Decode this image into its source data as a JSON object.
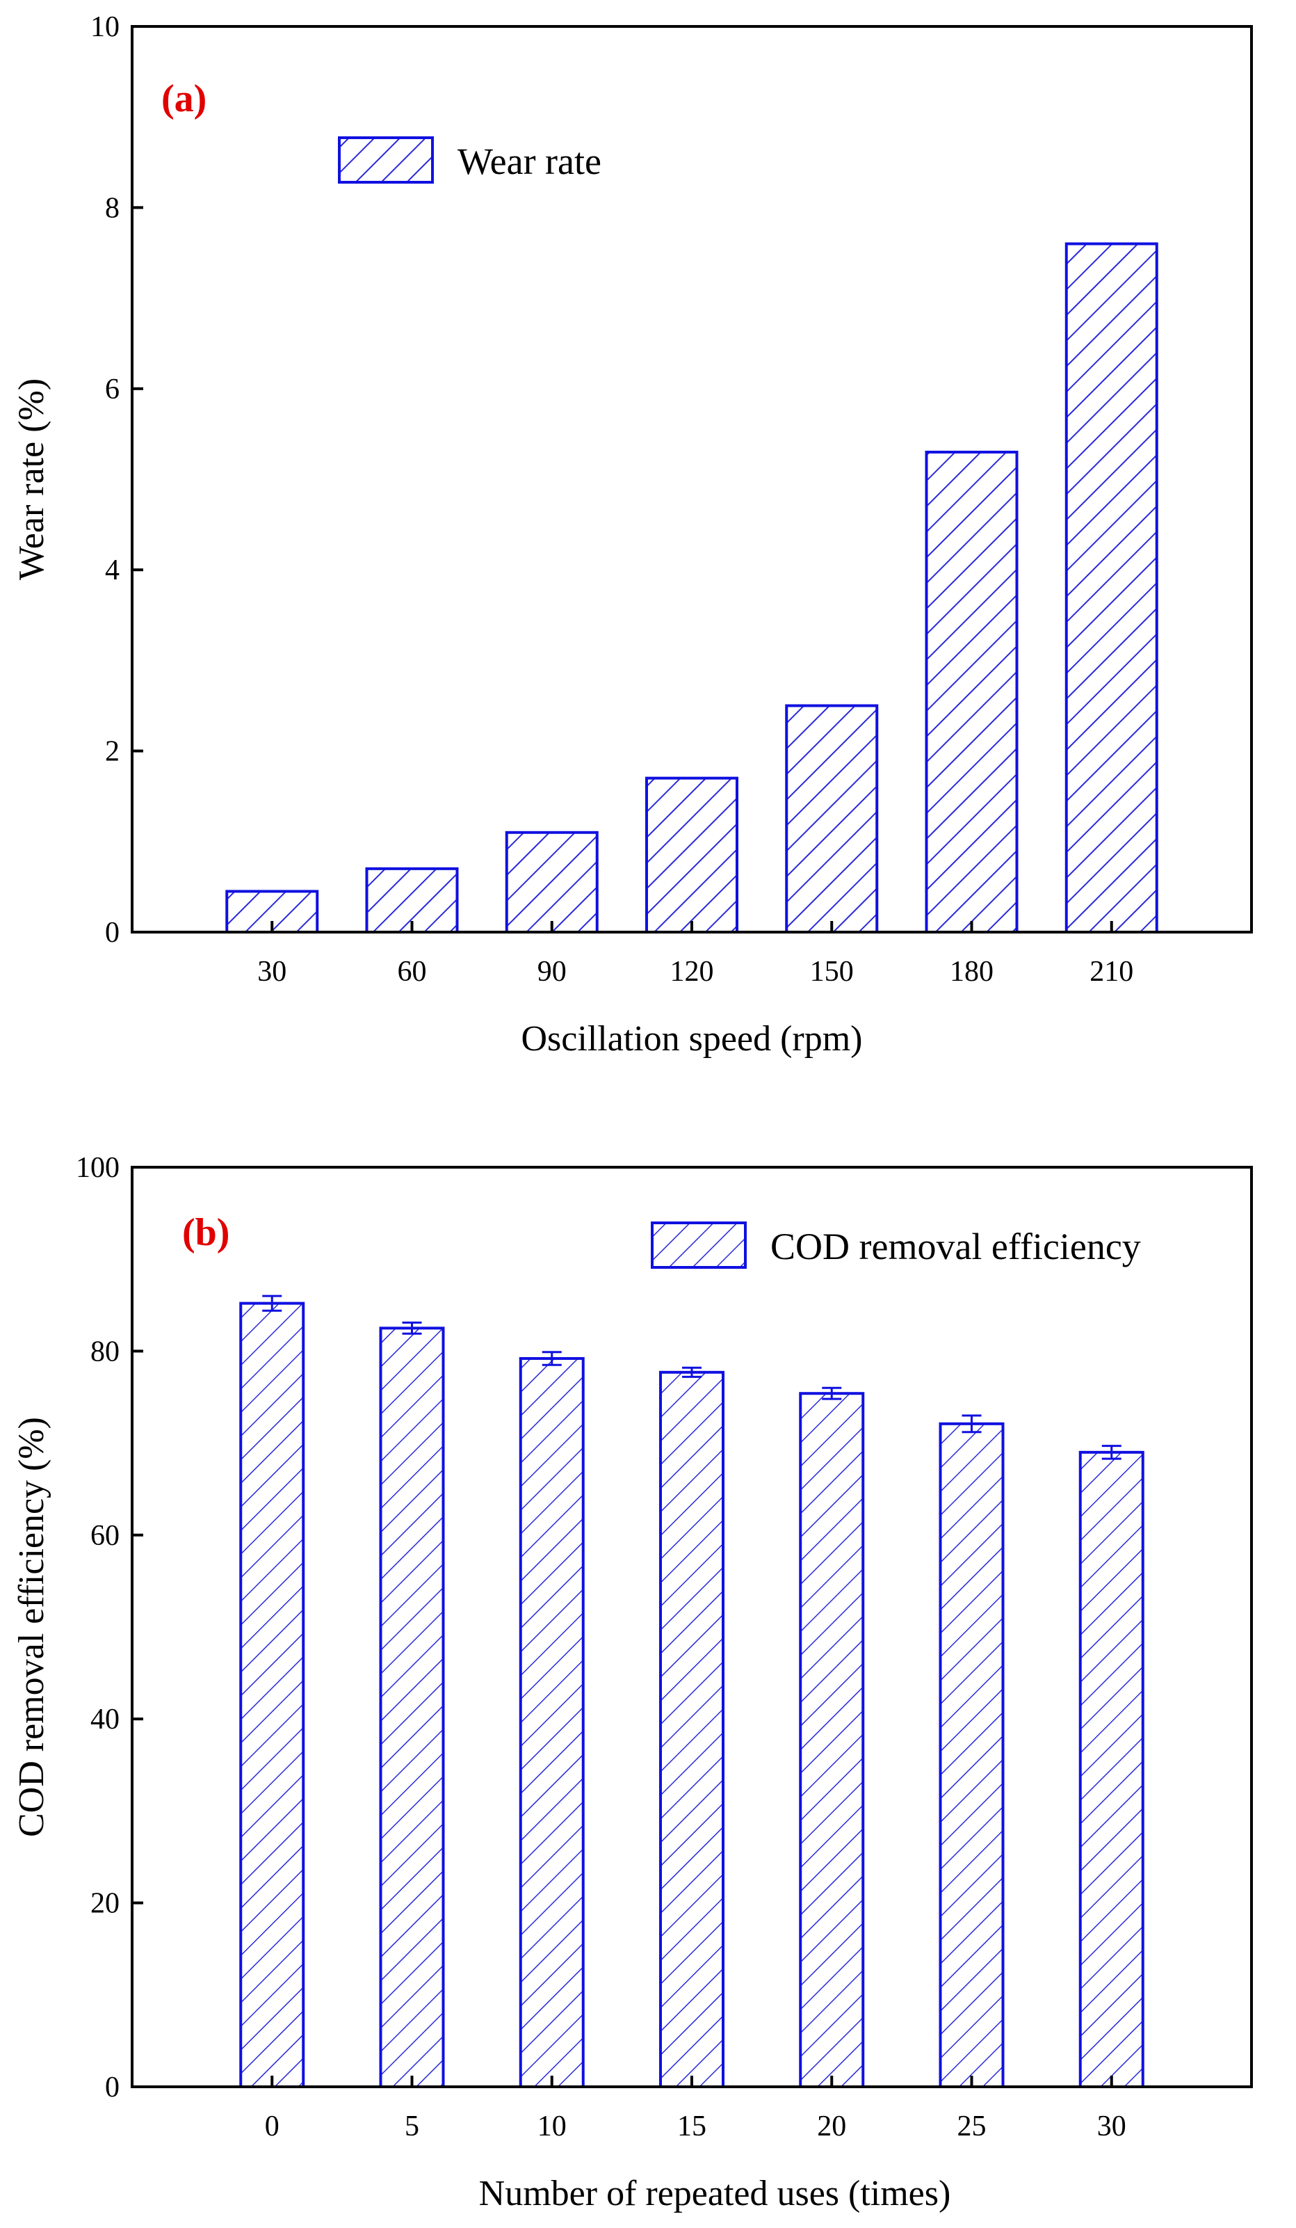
{
  "colors": {
    "bar_edge": "#1010e0",
    "hatch_a": "#2a2ad8",
    "hatch_b": "#2a2ad8",
    "bar_fill": "#ffffff",
    "panel_label": "#e00000",
    "axis": "#000000"
  },
  "chart_data": [
    {
      "type": "bar",
      "panel_label": "(a)",
      "title": "",
      "xlabel": "Oscillation speed  (rpm)",
      "ylabel": "Wear rate  (%)",
      "categories": [
        "30",
        "60",
        "90",
        "120",
        "150",
        "180",
        "210"
      ],
      "series": [
        {
          "name": "Wear rate",
          "values": [
            0.45,
            0.7,
            1.1,
            1.7,
            2.5,
            5.3,
            7.6
          ]
        }
      ],
      "ylim": [
        0,
        10
      ],
      "yticks": [
        "0",
        "2",
        "4",
        "6",
        "8",
        "10"
      ],
      "ytick_values": [
        0,
        2,
        4,
        6,
        8,
        10
      ],
      "legend": {
        "label": "Wear rate",
        "position": "top-left"
      },
      "error_bars": false,
      "grid": false
    },
    {
      "type": "bar",
      "panel_label": "(b)",
      "title": "",
      "xlabel": "Number of repeated uses (times)",
      "ylabel": "COD removal efficiency (%)",
      "categories": [
        "0",
        "5",
        "10",
        "15",
        "20",
        "25",
        "30"
      ],
      "series": [
        {
          "name": "COD removal efficiency",
          "values": [
            85.2,
            82.5,
            79.2,
            77.7,
            75.4,
            72.1,
            69.0
          ],
          "errors": [
            0.8,
            0.6,
            0.7,
            0.5,
            0.6,
            0.9,
            0.7
          ]
        }
      ],
      "ylim": [
        0,
        100
      ],
      "yticks": [
        "0",
        "20",
        "40",
        "60",
        "80",
        "100"
      ],
      "ytick_values": [
        0,
        20,
        40,
        60,
        80,
        100
      ],
      "legend": {
        "label": "COD removal efficiency",
        "position": "top-right"
      },
      "error_bars": true,
      "grid": false
    }
  ]
}
